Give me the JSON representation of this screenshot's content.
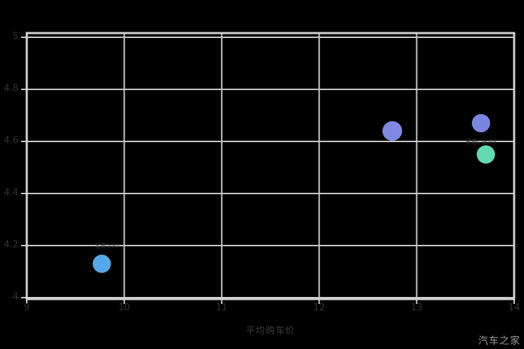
{
  "watermark": "汽车之家",
  "chart_data": {
    "type": "scatter",
    "title": "",
    "xlabel": "平均购车价",
    "ylabel": "",
    "xlim": [
      9,
      14
    ],
    "ylim": [
      4,
      5
    ],
    "x_ticks": [
      {
        "label": "9",
        "value": 9
      },
      {
        "label": "10",
        "value": 10
      },
      {
        "label": "11",
        "value": 11
      },
      {
        "label": "12",
        "value": 12
      },
      {
        "label": "13",
        "value": 13
      },
      {
        "label": "14",
        "value": 14
      }
    ],
    "y_ticks": [
      {
        "label": "5",
        "value": 5
      },
      {
        "label": "4.8",
        "value": 4.8
      },
      {
        "label": "4.6",
        "value": 4.6
      },
      {
        "label": "4.4",
        "value": 4.4
      },
      {
        "label": "4.2",
        "value": 4.2
      },
      {
        "label": "4",
        "value": 4
      }
    ],
    "grid": true,
    "legend": "none",
    "background_color": "#000000",
    "grid_color": "#c9c9c9",
    "border_color": "#d2d2d2",
    "tick_label_color": "#333333",
    "annotation_color": "#3a3a3a",
    "points": [
      {
        "x": 9.77,
        "y": 4.13,
        "r": 13,
        "color": "#55a8e9"
      },
      {
        "x": 12.75,
        "y": 4.64,
        "r": 14,
        "color": "#8089e2"
      },
      {
        "x": 13.66,
        "y": 4.67,
        "r": 13,
        "color": "#7b85e0"
      },
      {
        "x": 13.71,
        "y": 4.55,
        "r": 13,
        "color": "#63d9b1"
      }
    ],
    "annotations": [
      {
        "text": "宝骏 530",
        "x": 9.82,
        "y": 4.2
      },
      {
        "text": "星越L 瑞虎8",
        "x": 13.66,
        "y": 4.6
      }
    ]
  }
}
